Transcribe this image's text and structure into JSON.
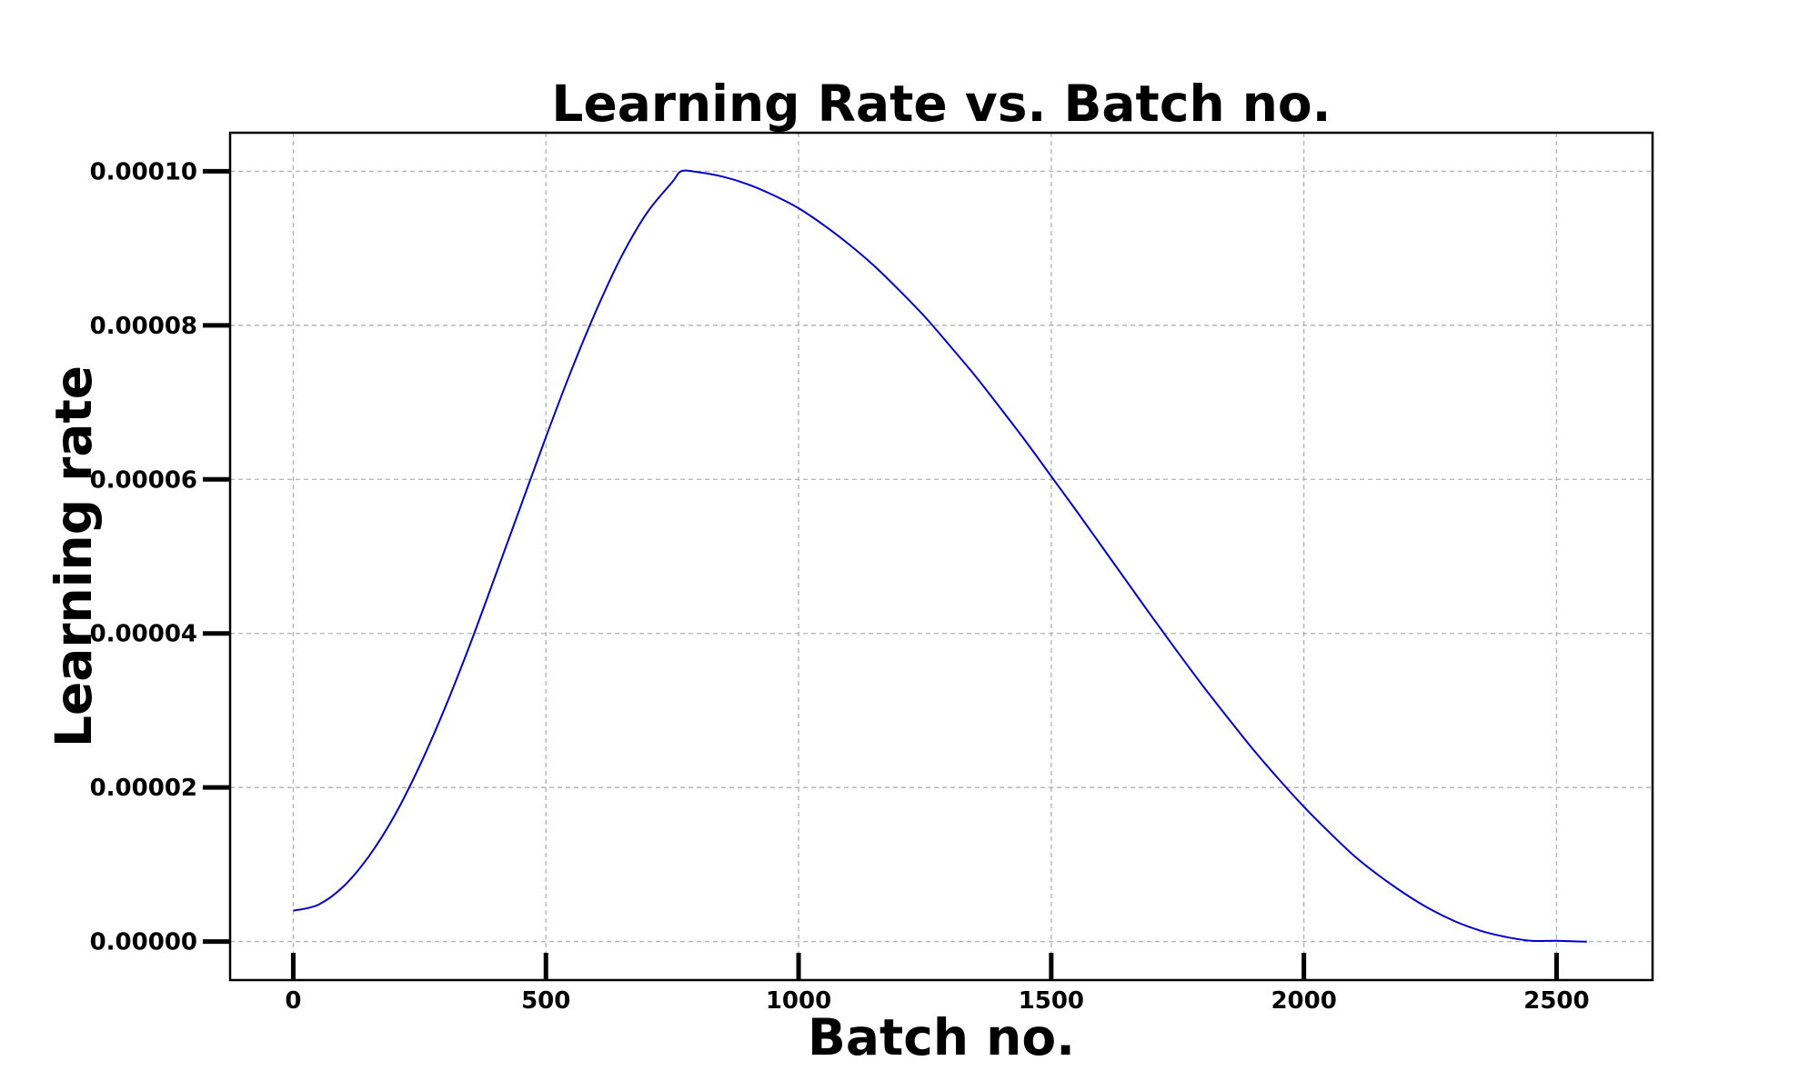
{
  "chart_data": {
    "type": "line",
    "title": "Learning Rate vs. Batch no.",
    "xlabel": "Batch no.",
    "ylabel": "Learning rate",
    "xlim": [
      -125,
      2690
    ],
    "ylim": [
      -5e-06,
      0.000105
    ],
    "x_ticks": [
      0,
      500,
      1000,
      1500,
      2000,
      2500
    ],
    "x_tick_labels": [
      "0",
      "500",
      "1000",
      "1500",
      "2000",
      "2500"
    ],
    "y_ticks": [
      0.0,
      2e-05,
      4e-05,
      6e-05,
      8e-05,
      0.0001
    ],
    "y_tick_labels": [
      "0.00000",
      "0.00002",
      "0.00004",
      "0.00006",
      "0.00008",
      "0.00010"
    ],
    "grid": true,
    "series": [
      {
        "color": "#0000cc",
        "x": [
          0,
          50,
          100,
          150,
          200,
          250,
          300,
          350,
          400,
          450,
          500,
          550,
          600,
          650,
          700,
          750,
          768,
          800,
          850,
          900,
          950,
          1000,
          1050,
          1100,
          1150,
          1200,
          1250,
          1300,
          1350,
          1400,
          1450,
          1500,
          1550,
          1600,
          1650,
          1700,
          1750,
          1800,
          1850,
          1900,
          1950,
          2000,
          2050,
          2100,
          2150,
          2200,
          2250,
          2300,
          2350,
          2400,
          2450,
          2500,
          2550,
          2560
        ],
        "y": [
          4e-06,
          4.8e-06,
          7.2e-06,
          1.11e-05,
          1.63e-05,
          2.28e-05,
          3.03e-05,
          3.86e-05,
          4.75e-05,
          5.65e-05,
          6.55e-05,
          7.41e-05,
          8.2e-05,
          8.9e-05,
          9.46e-05,
          9.86e-05,
          0.0001,
          9.99e-05,
          9.93e-05,
          9.83e-05,
          9.69e-05,
          9.52e-05,
          9.3e-05,
          9.05e-05,
          8.77e-05,
          8.45e-05,
          8.11e-05,
          7.73e-05,
          7.34e-05,
          6.92e-05,
          6.49e-05,
          6.04e-05,
          5.59e-05,
          5.13e-05,
          4.67e-05,
          4.21e-05,
          3.76e-05,
          3.32e-05,
          2.9e-05,
          2.49e-05,
          2.11e-05,
          1.75e-05,
          1.42e-05,
          1.11e-05,
          8.5e-06,
          6.2e-06,
          4.2e-06,
          2.6e-06,
          1.4e-06,
          6e-07,
          1e-07,
          1e-07,
          0.0,
          0.0
        ]
      }
    ]
  }
}
